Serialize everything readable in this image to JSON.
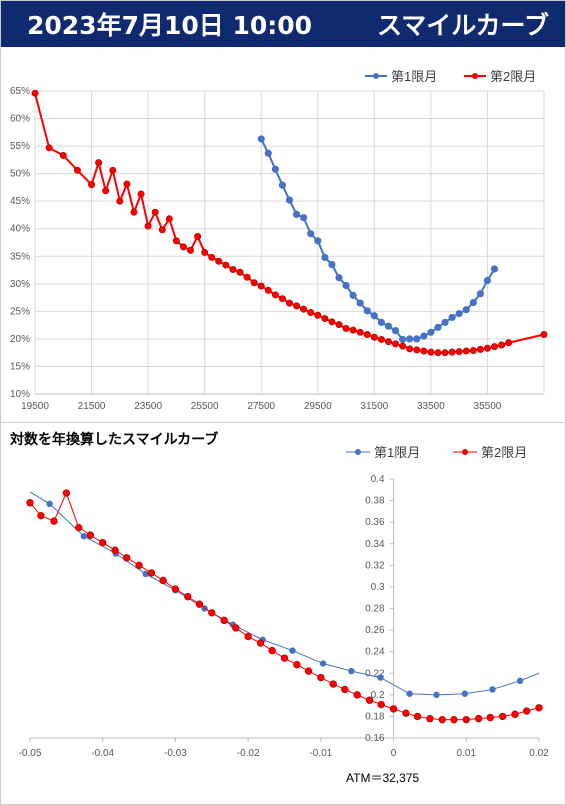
{
  "header": {
    "date_time": "2023年7月10日 10:00",
    "title": "スマイルカーブ"
  },
  "colors": {
    "banner": "#0f2a6e",
    "series1": "#4472c4",
    "series2": "#ff0000"
  },
  "chart_data": [
    {
      "type": "line",
      "title": "",
      "xlabel": "",
      "ylabel": "",
      "xlim": [
        19500,
        37500
      ],
      "ylim": [
        10,
        65
      ],
      "x_ticks": [
        "19500",
        "21500",
        "23500",
        "25500",
        "27500",
        "29500",
        "31500",
        "33500",
        "35500"
      ],
      "y_ticks": [
        "10%",
        "15%",
        "20%",
        "25%",
        "30%",
        "35%",
        "40%",
        "45%",
        "50%",
        "55%",
        "60%",
        "65%"
      ],
      "legend_position": "top-right",
      "series": [
        {
          "name": "第1限月",
          "color": "#4472c4",
          "points": [
            [
              27500,
              56.3
            ],
            [
              27750,
              53.7
            ],
            [
              28000,
              50.8
            ],
            [
              28250,
              47.9
            ],
            [
              28500,
              45.2
            ],
            [
              28750,
              42.6
            ],
            [
              29000,
              42.0
            ],
            [
              29250,
              39.1
            ],
            [
              29500,
              37.8
            ],
            [
              29750,
              34.8
            ],
            [
              30000,
              33.5
            ],
            [
              30250,
              31.1
            ],
            [
              30500,
              29.7
            ],
            [
              30750,
              27.9
            ],
            [
              31000,
              26.5
            ],
            [
              31250,
              25.1
            ],
            [
              31500,
              24.2
            ],
            [
              31750,
              23.0
            ],
            [
              32000,
              22.3
            ],
            [
              32250,
              21.5
            ],
            [
              32500,
              19.9
            ],
            [
              32750,
              20.0
            ],
            [
              33000,
              20.0
            ],
            [
              33250,
              20.5
            ],
            [
              33500,
              21.2
            ],
            [
              33750,
              22.1
            ],
            [
              34000,
              23.0
            ],
            [
              34250,
              23.9
            ],
            [
              34500,
              24.6
            ],
            [
              34750,
              25.3
            ],
            [
              35000,
              26.6
            ],
            [
              35250,
              28.2
            ],
            [
              35500,
              30.6
            ],
            [
              35750,
              32.7
            ]
          ]
        },
        {
          "name": "第2限月",
          "color": "#ff0000",
          "points": [
            [
              19500,
              64.6
            ],
            [
              20000,
              54.7
            ],
            [
              20500,
              53.3
            ],
            [
              21000,
              50.6
            ],
            [
              21500,
              48.0
            ],
            [
              21750,
              52.0
            ],
            [
              22000,
              46.9
            ],
            [
              22250,
              50.6
            ],
            [
              22500,
              45.0
            ],
            [
              22750,
              48.1
            ],
            [
              23000,
              43.0
            ],
            [
              23250,
              46.3
            ],
            [
              23500,
              40.5
            ],
            [
              23750,
              43.0
            ],
            [
              24000,
              39.8
            ],
            [
              24250,
              41.8
            ],
            [
              24500,
              37.8
            ],
            [
              24750,
              36.7
            ],
            [
              25000,
              36.1
            ],
            [
              25250,
              38.6
            ],
            [
              25500,
              35.7
            ],
            [
              25750,
              34.8
            ],
            [
              26000,
              34.1
            ],
            [
              26250,
              33.4
            ],
            [
              26500,
              32.6
            ],
            [
              26750,
              32.1
            ],
            [
              27000,
              31.2
            ],
            [
              27250,
              30.2
            ],
            [
              27500,
              29.6
            ],
            [
              27750,
              28.8
            ],
            [
              28000,
              28.0
            ],
            [
              28250,
              27.3
            ],
            [
              28500,
              26.5
            ],
            [
              28750,
              26.0
            ],
            [
              29000,
              25.4
            ],
            [
              29250,
              24.8
            ],
            [
              29500,
              24.3
            ],
            [
              29750,
              23.7
            ],
            [
              30000,
              23.1
            ],
            [
              30250,
              22.6
            ],
            [
              30500,
              21.9
            ],
            [
              30750,
              21.6
            ],
            [
              31000,
              21.2
            ],
            [
              31250,
              20.8
            ],
            [
              31500,
              20.3
            ],
            [
              31750,
              19.9
            ],
            [
              32000,
              19.5
            ],
            [
              32250,
              19.1
            ],
            [
              32500,
              18.7
            ],
            [
              32750,
              18.2
            ],
            [
              33000,
              18.0
            ],
            [
              33250,
              17.8
            ],
            [
              33500,
              17.6
            ],
            [
              33750,
              17.5
            ],
            [
              34000,
              17.5
            ],
            [
              34250,
              17.6
            ],
            [
              34500,
              17.7
            ],
            [
              34750,
              17.8
            ],
            [
              35000,
              17.9
            ],
            [
              35250,
              18.1
            ],
            [
              35500,
              18.3
            ],
            [
              35750,
              18.6
            ],
            [
              36000,
              18.9
            ],
            [
              36250,
              19.3
            ],
            [
              37500,
              20.8
            ]
          ]
        }
      ]
    },
    {
      "type": "line",
      "title": "対数を年換算したスマイルカーブ",
      "xlabel": "",
      "ylabel": "",
      "xlim": [
        -0.05,
        0.02
      ],
      "ylim": [
        0.16,
        0.4
      ],
      "x_ticks": [
        "-0.05",
        "-0.04",
        "-0.03",
        "-0.02",
        "-0.01",
        "0",
        "0.01",
        "0.02"
      ],
      "y_ticks": [
        "0.16",
        "0.18",
        "0.2",
        "0.22",
        "0.24",
        "0.26",
        "0.28",
        "0.3",
        "0.32",
        "0.34",
        "0.36",
        "0.38",
        "0.4"
      ],
      "legend_position": "top-right",
      "annotation": "ATM＝32,375",
      "series": [
        {
          "name": "第1限月",
          "color": "#4472c4",
          "points": [
            [
              -0.0473,
              0.377
            ],
            [
              -0.0426,
              0.347
            ],
            [
              -0.0382,
              0.331
            ],
            [
              -0.0341,
              0.312
            ],
            [
              -0.03,
              0.297
            ],
            [
              -0.026,
              0.28
            ],
            [
              -0.0221,
              0.265
            ],
            [
              -0.018,
              0.251
            ],
            [
              -0.0139,
              0.241
            ],
            [
              -0.0097,
              0.229
            ],
            [
              -0.0058,
              0.222
            ],
            [
              -0.0018,
              0.216
            ],
            [
              0.0022,
              0.201
            ],
            [
              0.0059,
              0.2
            ],
            [
              0.0098,
              0.201
            ],
            [
              0.0136,
              0.205
            ],
            [
              0.0174,
              0.213
            ]
          ],
          "line_extent": [
            [
              -0.05,
              0.388
            ],
            [
              0.02,
              0.22
            ]
          ]
        },
        {
          "name": "第2限月",
          "color": "#ff0000",
          "points": [
            [
              -0.05,
              0.378
            ],
            [
              -0.0485,
              0.366
            ],
            [
              -0.0467,
              0.361
            ],
            [
              -0.045,
              0.387
            ],
            [
              -0.0433,
              0.355
            ],
            [
              -0.0417,
              0.348
            ],
            [
              -0.04,
              0.341
            ],
            [
              -0.0383,
              0.334
            ],
            [
              -0.0367,
              0.327
            ],
            [
              -0.035,
              0.32
            ],
            [
              -0.0333,
              0.313
            ],
            [
              -0.0317,
              0.306
            ],
            [
              -0.03,
              0.298
            ],
            [
              -0.0283,
              0.291
            ],
            [
              -0.0267,
              0.284
            ],
            [
              -0.025,
              0.276
            ],
            [
              -0.0233,
              0.269
            ],
            [
              -0.0217,
              0.262
            ],
            [
              -0.02,
              0.254
            ],
            [
              -0.0183,
              0.248
            ],
            [
              -0.0167,
              0.241
            ],
            [
              -0.015,
              0.234
            ],
            [
              -0.0133,
              0.228
            ],
            [
              -0.0117,
              0.222
            ],
            [
              -0.01,
              0.216
            ],
            [
              -0.0083,
              0.21
            ],
            [
              -0.0067,
              0.205
            ],
            [
              -0.005,
              0.2
            ],
            [
              -0.0033,
              0.195
            ],
            [
              -0.0017,
              0.191
            ],
            [
              0.0,
              0.187
            ],
            [
              0.0017,
              0.183
            ],
            [
              0.0033,
              0.18
            ],
            [
              0.005,
              0.178
            ],
            [
              0.0067,
              0.177
            ],
            [
              0.0083,
              0.177
            ],
            [
              0.01,
              0.177
            ],
            [
              0.0117,
              0.178
            ],
            [
              0.0133,
              0.179
            ],
            [
              0.015,
              0.18
            ],
            [
              0.0167,
              0.182
            ],
            [
              0.0183,
              0.185
            ],
            [
              0.02,
              0.188
            ]
          ]
        }
      ]
    }
  ]
}
